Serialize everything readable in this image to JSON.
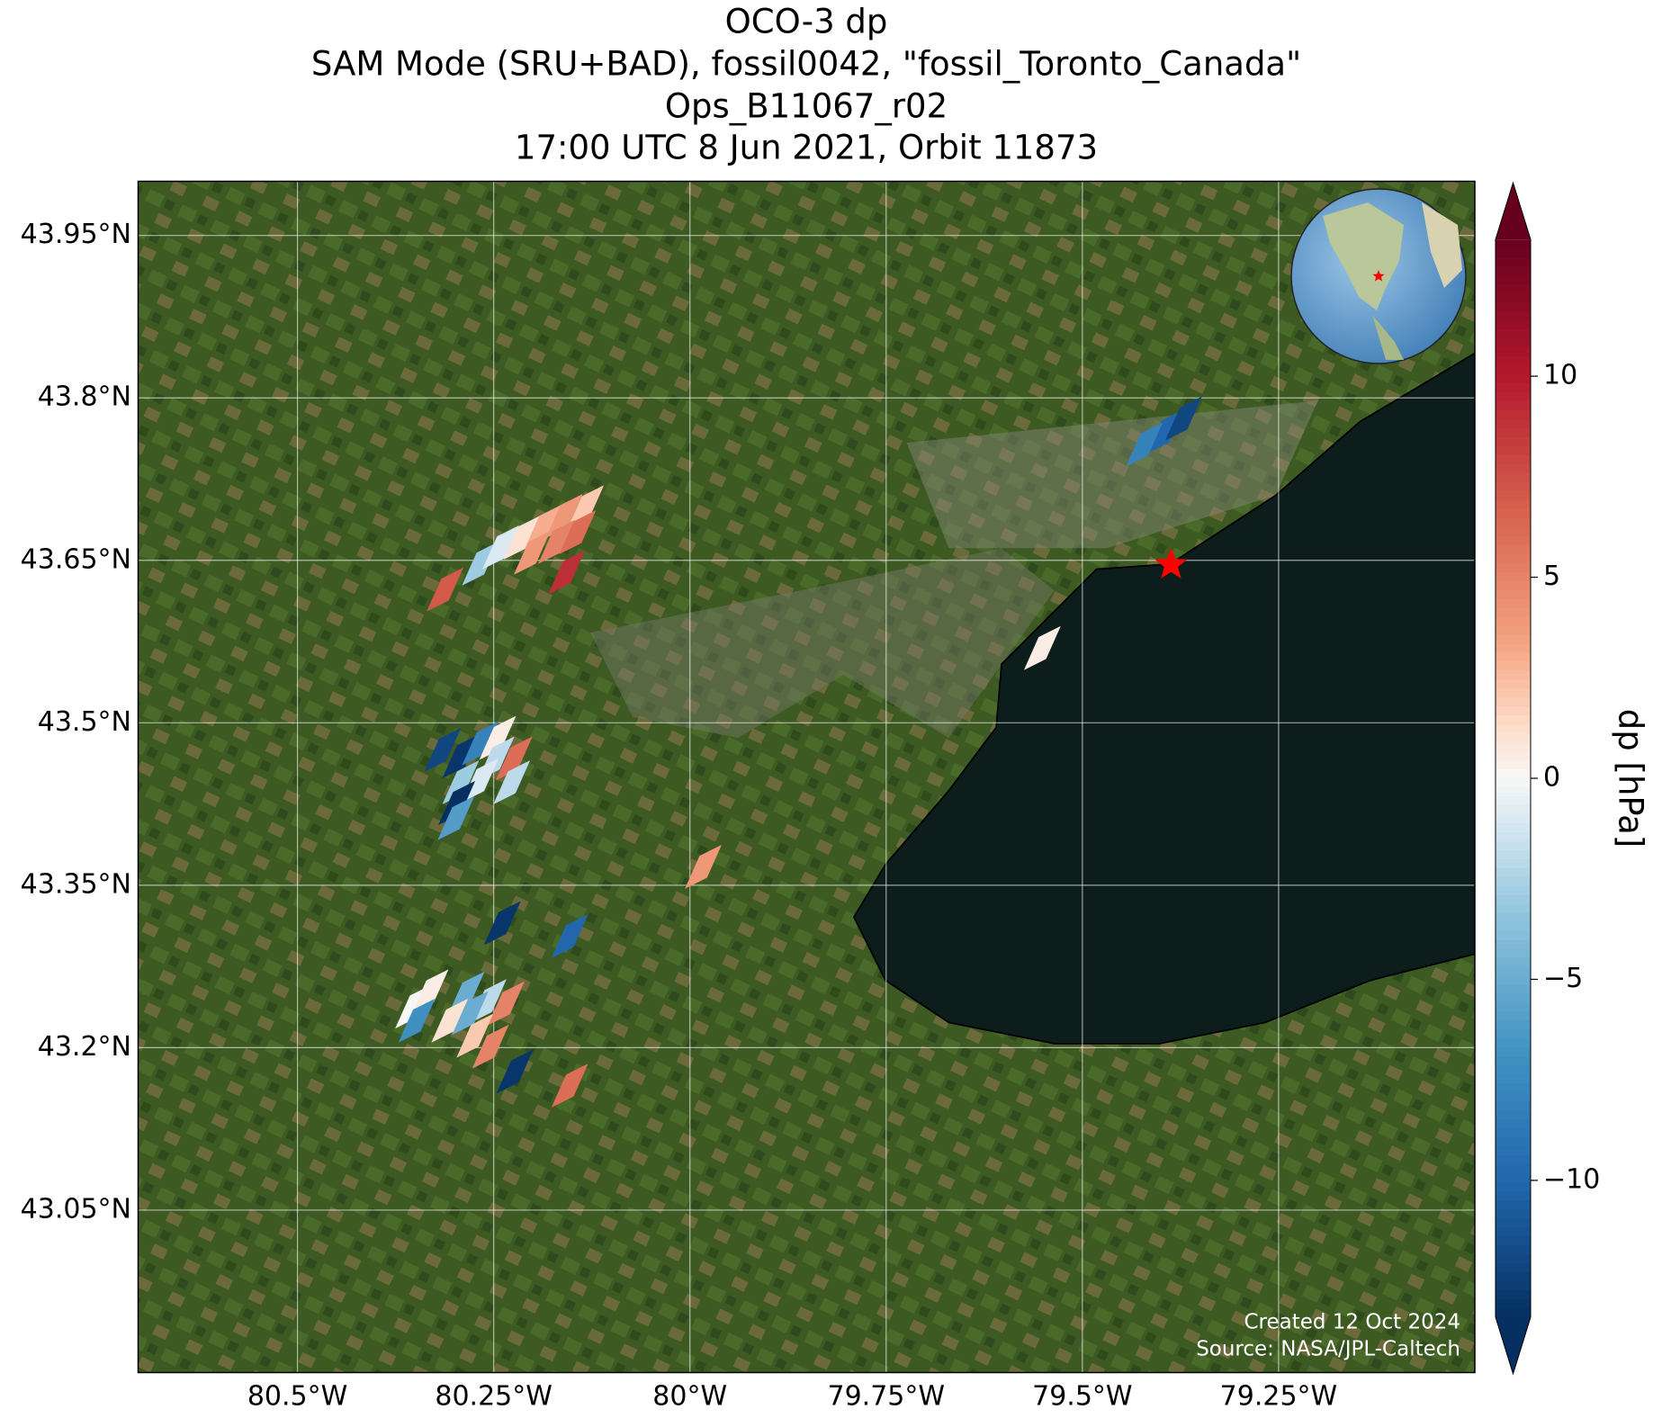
{
  "chart_data": {
    "type": "map",
    "title": [
      "OCO-3 dp",
      "SAM Mode (SRU+BAD), fossil0042, \"fossil_Toronto_Canada\"",
      "Ops_B11067_r02",
      "17:00 UTC 8 Jun 2021, Orbit 11873"
    ],
    "xlim": [
      -80.703,
      -79.0
    ],
    "ylim": [
      42.9,
      44.0
    ],
    "xticks": [
      {
        "value": -80.5,
        "label": "80.5°W"
      },
      {
        "value": -80.25,
        "label": "80.25°W"
      },
      {
        "value": -80,
        "label": "80°W"
      },
      {
        "value": -79.75,
        "label": "79.75°W"
      },
      {
        "value": -79.5,
        "label": "79.5°W"
      },
      {
        "value": -79.25,
        "label": "79.25°W"
      }
    ],
    "yticks": [
      {
        "value": 43.95,
        "label": "43.95°N"
      },
      {
        "value": 43.8,
        "label": "43.8°N"
      },
      {
        "value": 43.65,
        "label": "43.65°N"
      },
      {
        "value": 43.5,
        "label": "43.5°N"
      },
      {
        "value": 43.35,
        "label": "43.35°N"
      },
      {
        "value": 43.2,
        "label": "43.2°N"
      },
      {
        "value": 43.05,
        "label": "43.05°N"
      }
    ],
    "grid": true,
    "target": {
      "lon": -79.387,
      "lat": 43.646,
      "color": "#ff0000"
    },
    "colorbar": {
      "label": "dp [hPa]",
      "cmap": "RdBu_r",
      "clim": [
        -13.4,
        13.4
      ],
      "extend": "both",
      "ticks": [
        {
          "value": -10,
          "label": "−10"
        },
        {
          "value": -5,
          "label": "−5"
        },
        0,
        5,
        10
      ]
    },
    "footprints": [
      {
        "lon": -79.394,
        "lat": 43.769,
        "dp": -10
      },
      {
        "lon": -79.421,
        "lat": 43.757,
        "dp": -8
      },
      {
        "lon": -79.371,
        "lat": 43.781,
        "dp": -12
      },
      {
        "lon": -79.551,
        "lat": 43.569,
        "dp": 0.5
      },
      {
        "lon": -80.312,
        "lat": 43.623,
        "dp": 7
      },
      {
        "lon": -80.267,
        "lat": 43.647,
        "dp": -3
      },
      {
        "lon": -80.241,
        "lat": 43.662,
        "dp": -1
      },
      {
        "lon": -80.214,
        "lat": 43.671,
        "dp": 1
      },
      {
        "lon": -80.187,
        "lat": 43.681,
        "dp": 3
      },
      {
        "lon": -80.16,
        "lat": 43.691,
        "dp": 4
      },
      {
        "lon": -80.133,
        "lat": 43.699,
        "dp": 2
      },
      {
        "lon": -80.201,
        "lat": 43.657,
        "dp": 4
      },
      {
        "lon": -80.17,
        "lat": 43.667,
        "dp": 5
      },
      {
        "lon": -80.143,
        "lat": 43.676,
        "dp": 6
      },
      {
        "lon": -80.157,
        "lat": 43.639,
        "dp": 9
      },
      {
        "lon": -80.315,
        "lat": 43.475,
        "dp": -12
      },
      {
        "lon": -80.292,
        "lat": 43.469,
        "dp": -13
      },
      {
        "lon": -80.267,
        "lat": 43.481,
        "dp": -8
      },
      {
        "lon": -80.245,
        "lat": 43.486,
        "dp": 0.5
      },
      {
        "lon": -80.247,
        "lat": 43.467,
        "dp": -2
      },
      {
        "lon": -80.292,
        "lat": 43.445,
        "dp": -3
      },
      {
        "lon": -80.267,
        "lat": 43.447,
        "dp": -1
      },
      {
        "lon": -80.297,
        "lat": 43.426,
        "dp": -14
      },
      {
        "lon": -80.298,
        "lat": 43.412,
        "dp": -6
      },
      {
        "lon": -80.224,
        "lat": 43.467,
        "dp": 6
      },
      {
        "lon": -80.227,
        "lat": 43.445,
        "dp": -2
      },
      {
        "lon": -79.983,
        "lat": 43.367,
        "dp": 4
      },
      {
        "lon": -80.239,
        "lat": 43.315,
        "dp": -13
      },
      {
        "lon": -80.153,
        "lat": 43.303,
        "dp": -10
      },
      {
        "lon": -80.352,
        "lat": 43.238,
        "dp": 0
      },
      {
        "lon": -80.331,
        "lat": 43.252,
        "dp": 0.5
      },
      {
        "lon": -80.348,
        "lat": 43.225,
        "dp": -7
      },
      {
        "lon": -80.285,
        "lat": 43.25,
        "dp": -5
      },
      {
        "lon": -80.257,
        "lat": 43.243,
        "dp": -2
      },
      {
        "lon": -80.28,
        "lat": 43.232,
        "dp": -5
      },
      {
        "lon": -80.306,
        "lat": 43.225,
        "dp": 1
      },
      {
        "lon": -80.234,
        "lat": 43.241,
        "dp": 5
      },
      {
        "lon": -80.274,
        "lat": 43.211,
        "dp": 2
      },
      {
        "lon": -80.254,
        "lat": 43.201,
        "dp": 5
      },
      {
        "lon": -80.223,
        "lat": 43.178,
        "dp": -13
      },
      {
        "lon": -80.153,
        "lat": 43.165,
        "dp": 6
      }
    ],
    "credits": [
      "Created 12 Oct 2024",
      "Source: NASA/JPL-Caltech"
    ]
  }
}
